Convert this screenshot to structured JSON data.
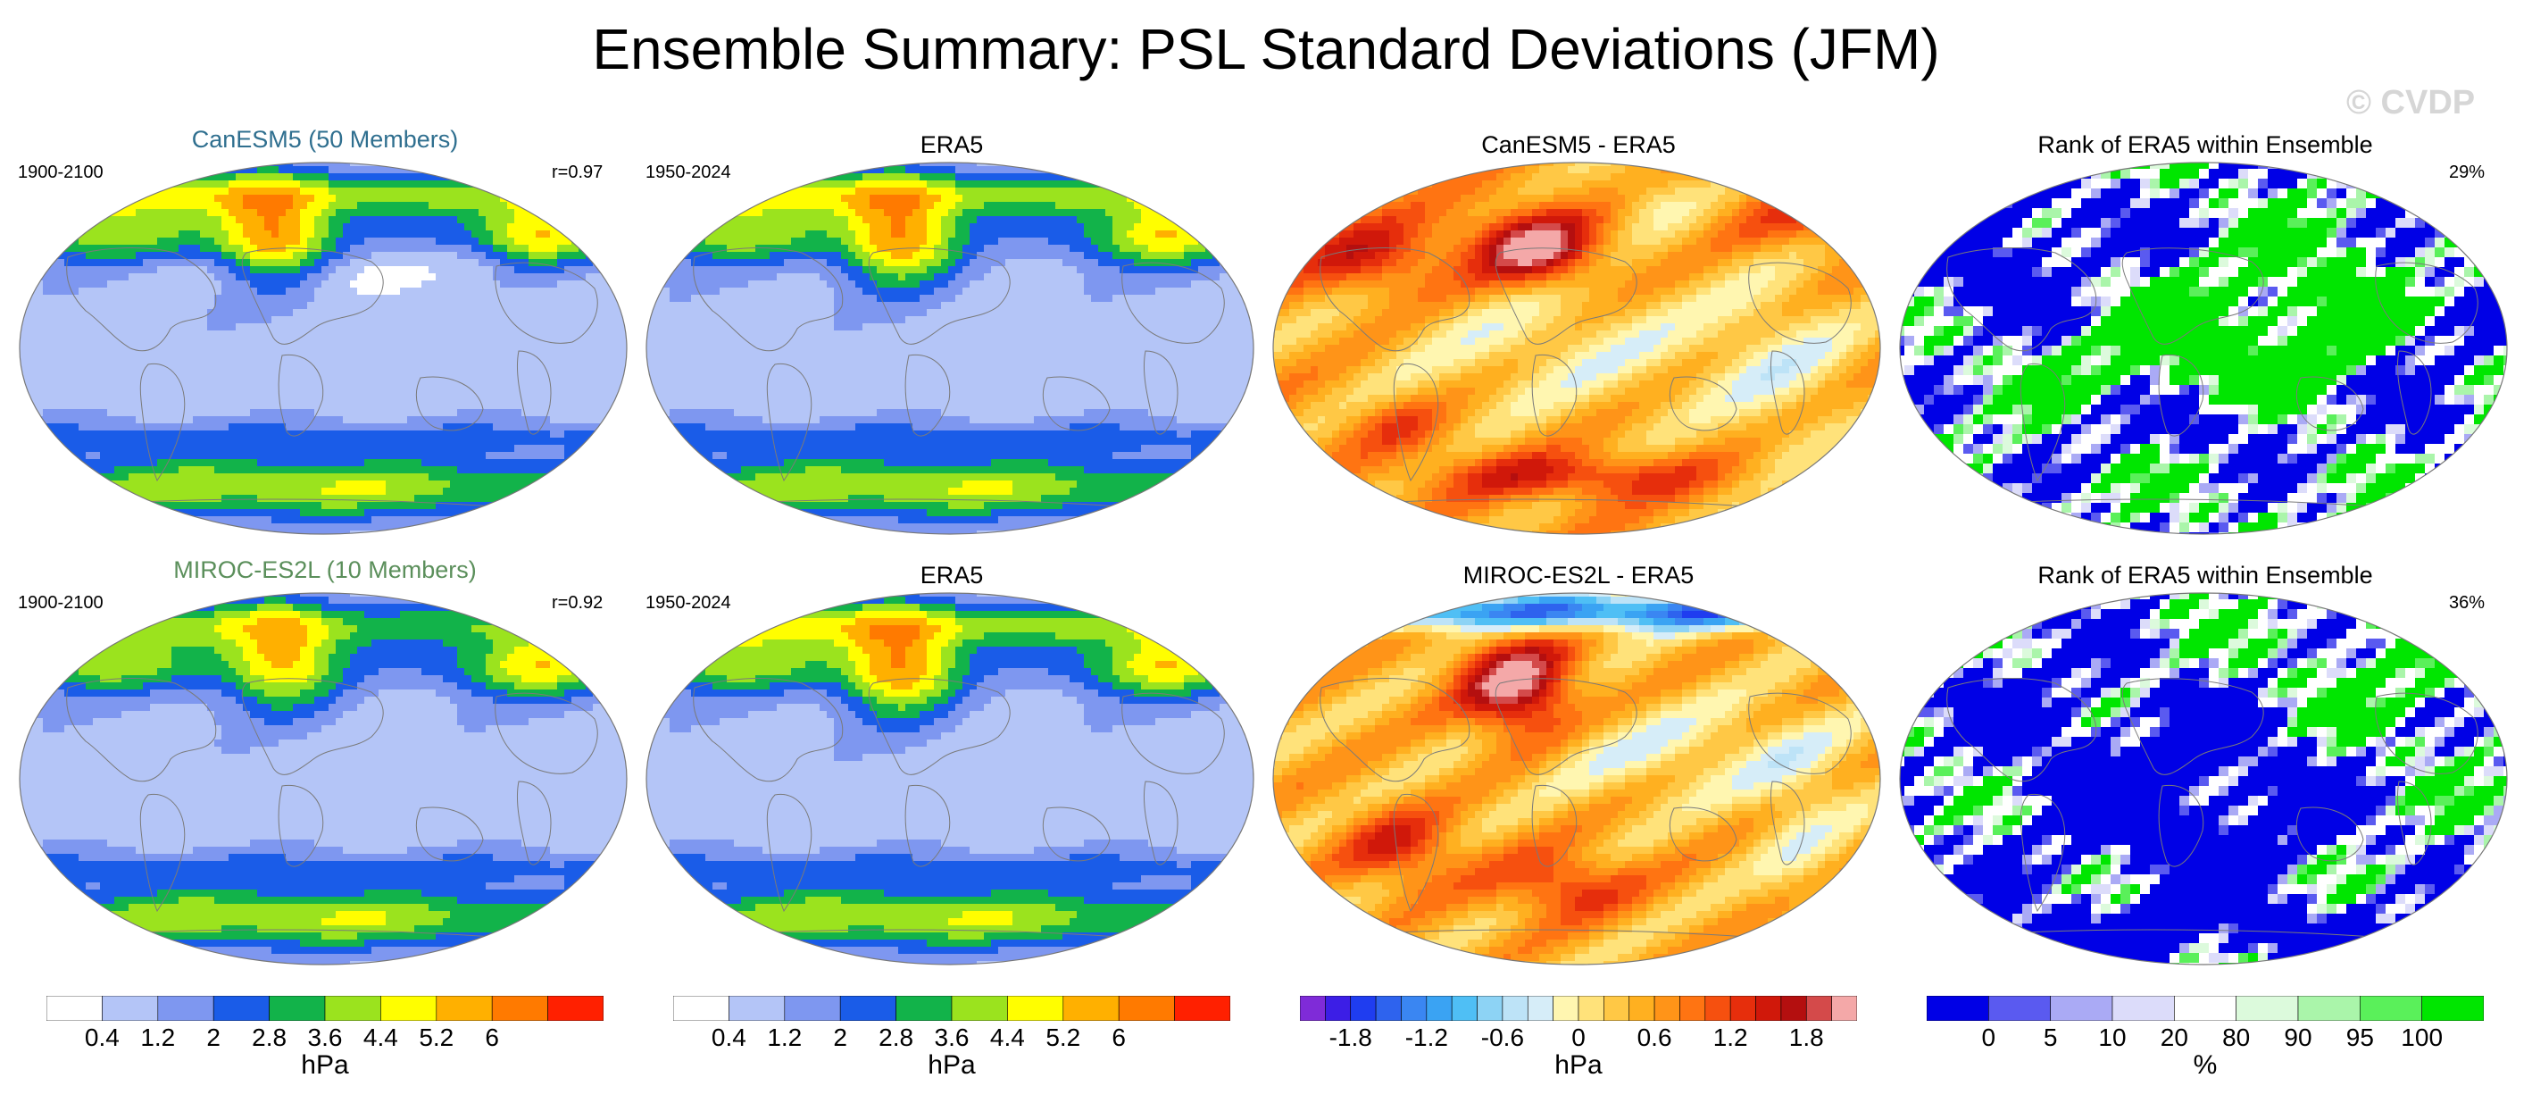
{
  "title": "Ensemble Summary: PSL Standard Deviations (JFM)",
  "watermark": "© CVDP",
  "rows": [
    {
      "panels": [
        {
          "title": "CanESM5 (50 Members)",
          "title_color": "#2f6f8f",
          "left_label": "1900-2100",
          "right_label": "r=0.97",
          "scheme": "sd",
          "field": "model1"
        },
        {
          "title": "ERA5",
          "title_color": "#000000",
          "left_label": "1950-2024",
          "right_label": "",
          "scheme": "sd",
          "field": "era5"
        },
        {
          "title": "CanESM5 - ERA5",
          "title_color": "#000000",
          "left_label": "",
          "right_label": "",
          "scheme": "diff",
          "field": "diff1"
        },
        {
          "title": "Rank of ERA5 within Ensemble",
          "title_color": "#000000",
          "left_label": "",
          "right_label": "29%",
          "scheme": "rank",
          "field": "rank1"
        }
      ]
    },
    {
      "panels": [
        {
          "title": "MIROC-ES2L (10 Members)",
          "title_color": "#5b8f5b",
          "left_label": "1900-2100",
          "right_label": "r=0.92",
          "scheme": "sd",
          "field": "model2"
        },
        {
          "title": "ERA5",
          "title_color": "#000000",
          "left_label": "1950-2024",
          "right_label": "",
          "scheme": "sd",
          "field": "era5"
        },
        {
          "title": "MIROC-ES2L - ERA5",
          "title_color": "#000000",
          "left_label": "",
          "right_label": "",
          "scheme": "diff",
          "field": "diff2"
        },
        {
          "title": "Rank of ERA5 within Ensemble",
          "title_color": "#000000",
          "left_label": "",
          "right_label": "36%",
          "scheme": "rank",
          "field": "rank2"
        }
      ]
    }
  ],
  "colorbars": [
    {
      "unit": "hPa",
      "ticks": [
        "0.4",
        "1.2",
        "2",
        "2.8",
        "3.6",
        "4.4",
        "5.2",
        "6"
      ],
      "colors": [
        "#ffffff",
        "#b4c5f7",
        "#7e97f0",
        "#1a5ce8",
        "#12b34a",
        "#9be31e",
        "#fffe00",
        "#ffb000",
        "#ff7a00",
        "#ff2000"
      ]
    },
    {
      "unit": "hPa",
      "ticks": [
        "0.4",
        "1.2",
        "2",
        "2.8",
        "3.6",
        "4.4",
        "5.2",
        "6"
      ],
      "colors": [
        "#ffffff",
        "#b4c5f7",
        "#7e97f0",
        "#1a5ce8",
        "#12b34a",
        "#9be31e",
        "#fffe00",
        "#ffb000",
        "#ff7a00",
        "#ff2000"
      ]
    },
    {
      "unit": "hPa",
      "ticks": [
        "-1.8",
        "-1.2",
        "-0.6",
        "0",
        "0.6",
        "1.2",
        "1.8"
      ],
      "colors": [
        "#7f2bd8",
        "#3c1ee6",
        "#1f3df0",
        "#2e63ee",
        "#3a86f2",
        "#3aa3f3",
        "#4fbff5",
        "#8dd3f5",
        "#bde3f7",
        "#d6edf8",
        "#fff6b0",
        "#ffe27a",
        "#ffc845",
        "#ffb020",
        "#ff9418",
        "#ff7412",
        "#f6500f",
        "#e62e0c",
        "#d0180a",
        "#b40f0f",
        "#d44a4a",
        "#f4a8a8"
      ]
    },
    {
      "unit": "%",
      "ticks": [
        "0",
        "5",
        "10",
        "20",
        "80",
        "90",
        "95",
        "100"
      ],
      "colors": [
        "#0000e6",
        "#5a5af0",
        "#aaaaf5",
        "#dcdcfa",
        "#ffffff",
        "#dcfadc",
        "#aaf5aa",
        "#5af05a",
        "#00e600"
      ]
    }
  ]
}
